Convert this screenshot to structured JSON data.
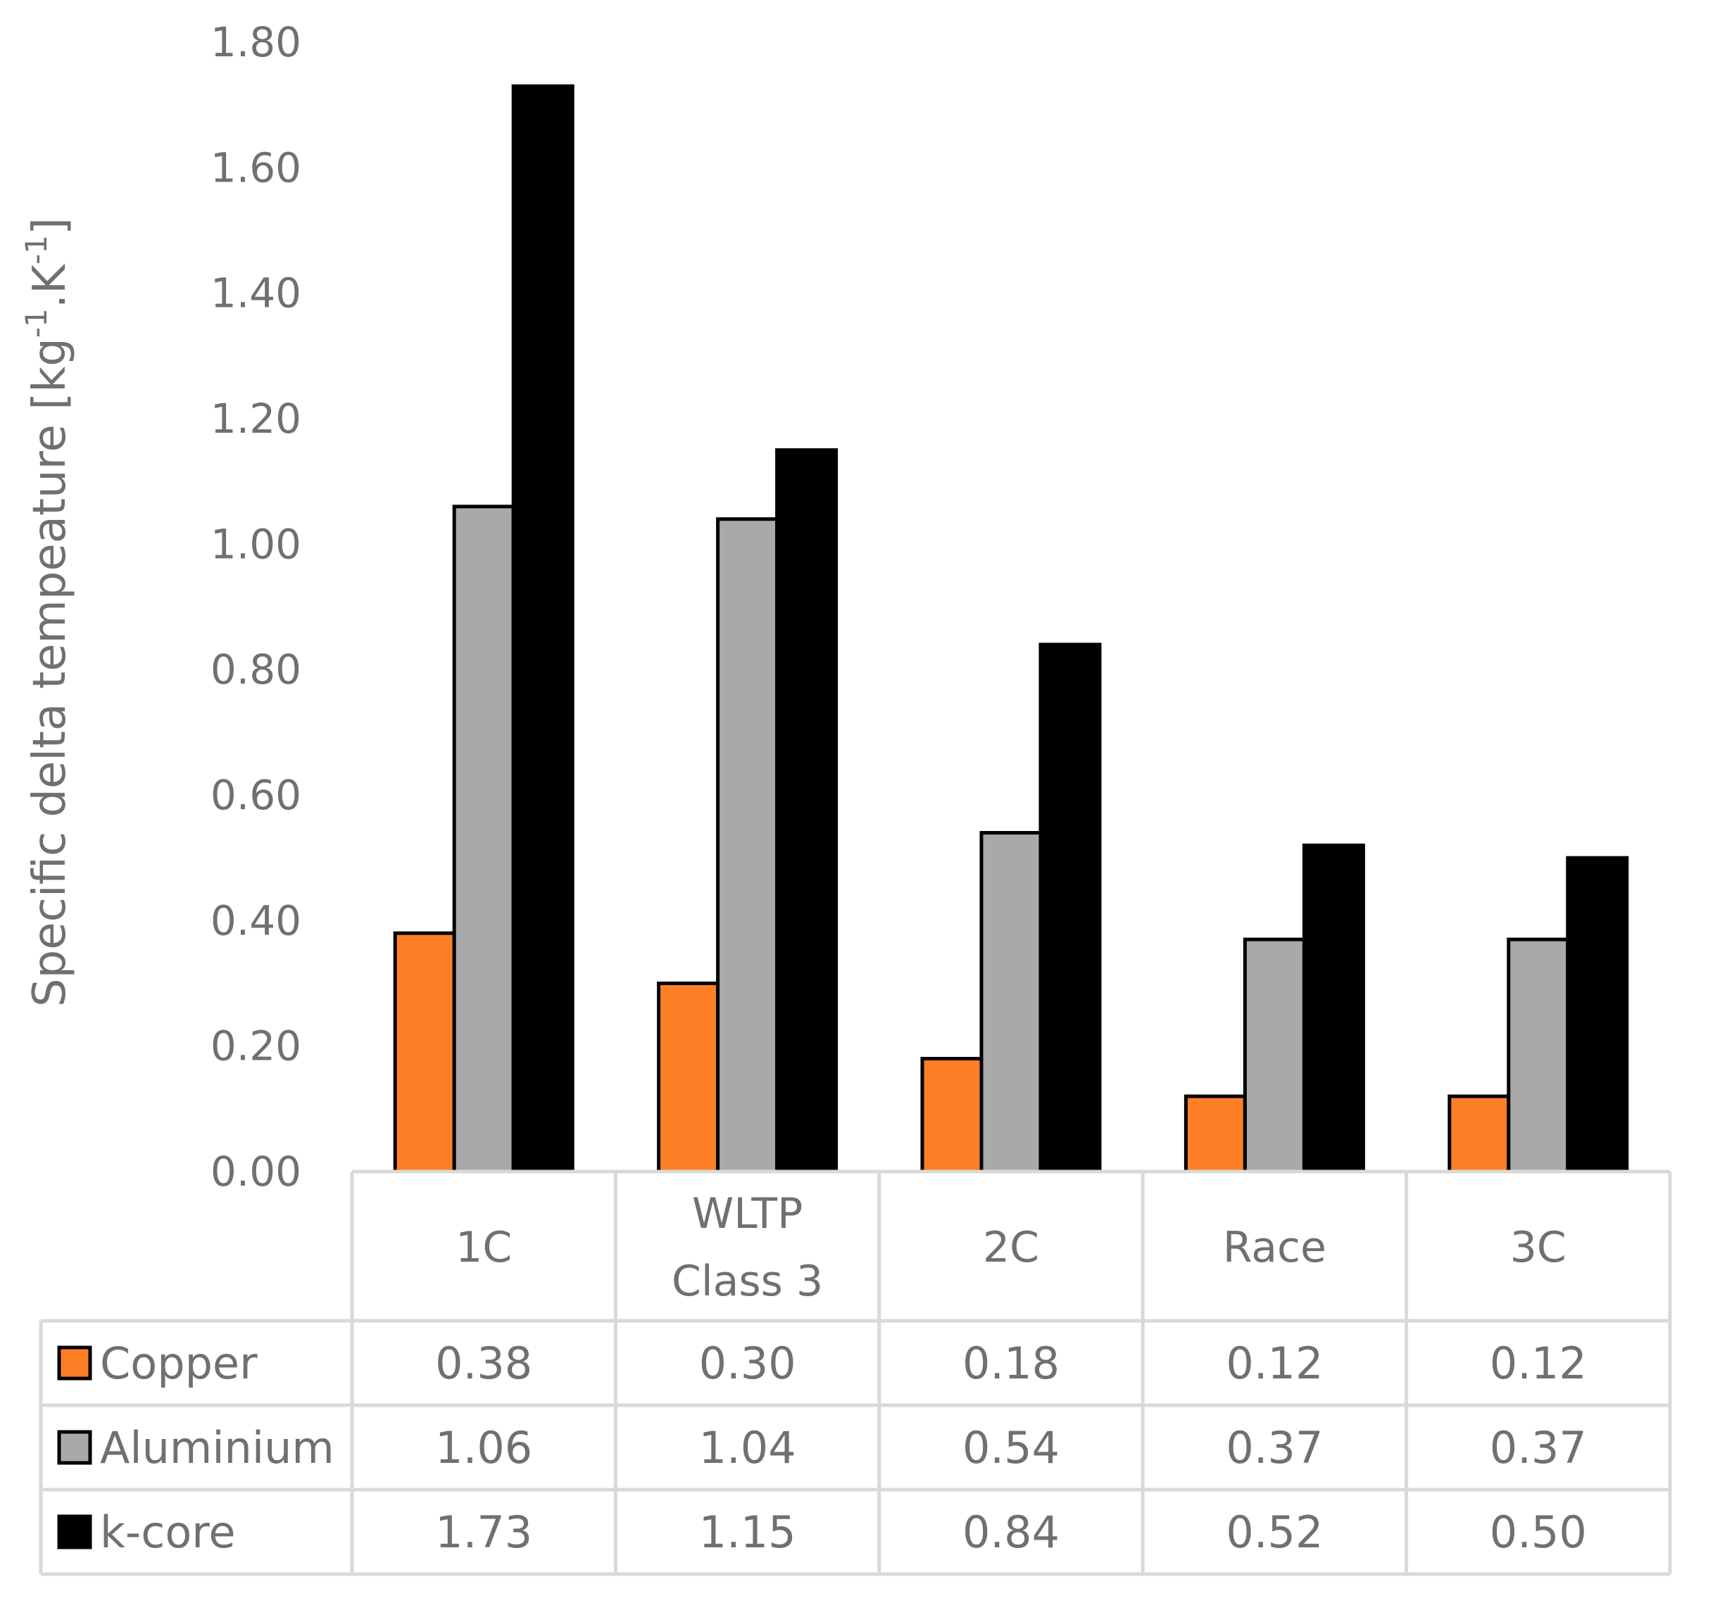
{
  "chart_data": {
    "type": "bar",
    "title": "",
    "xlabel": "",
    "ylabel": {
      "base": "Specific delta tempeature [kg",
      "sup1": "-1",
      "mid": ".K",
      "sup2": "-1",
      "end": "]"
    },
    "ylim": [
      0,
      1.8
    ],
    "yticks": [
      "0.00",
      "0.20",
      "0.40",
      "0.60",
      "0.80",
      "1.00",
      "1.20",
      "1.40",
      "1.60",
      "1.80"
    ],
    "categories": [
      {
        "lines": [
          "1C"
        ]
      },
      {
        "lines": [
          "WLTP",
          "Class 3"
        ]
      },
      {
        "lines": [
          "2C"
        ]
      },
      {
        "lines": [
          "Race"
        ]
      },
      {
        "lines": [
          "3C"
        ]
      }
    ],
    "series": [
      {
        "name": "Copper",
        "color": "#FF7F27",
        "values": [
          0.38,
          0.3,
          0.18,
          0.12,
          0.12
        ],
        "labels": [
          "0.38",
          "0.30",
          "0.18",
          "0.12",
          "0.12"
        ]
      },
      {
        "name": "Aluminium",
        "color": "#A9A9A9",
        "values": [
          1.06,
          1.04,
          0.54,
          0.37,
          0.37
        ],
        "labels": [
          "1.06",
          "1.04",
          "0.54",
          "0.37",
          "0.37"
        ]
      },
      {
        "name": "k-core",
        "color": "#000000",
        "values": [
          1.73,
          1.15,
          0.84,
          0.52,
          0.5
        ],
        "labels": [
          "1.73",
          "1.15",
          "0.84",
          "0.52",
          "0.50"
        ]
      }
    ],
    "legend": "data-table-left",
    "grid": false,
    "data_table": true
  }
}
